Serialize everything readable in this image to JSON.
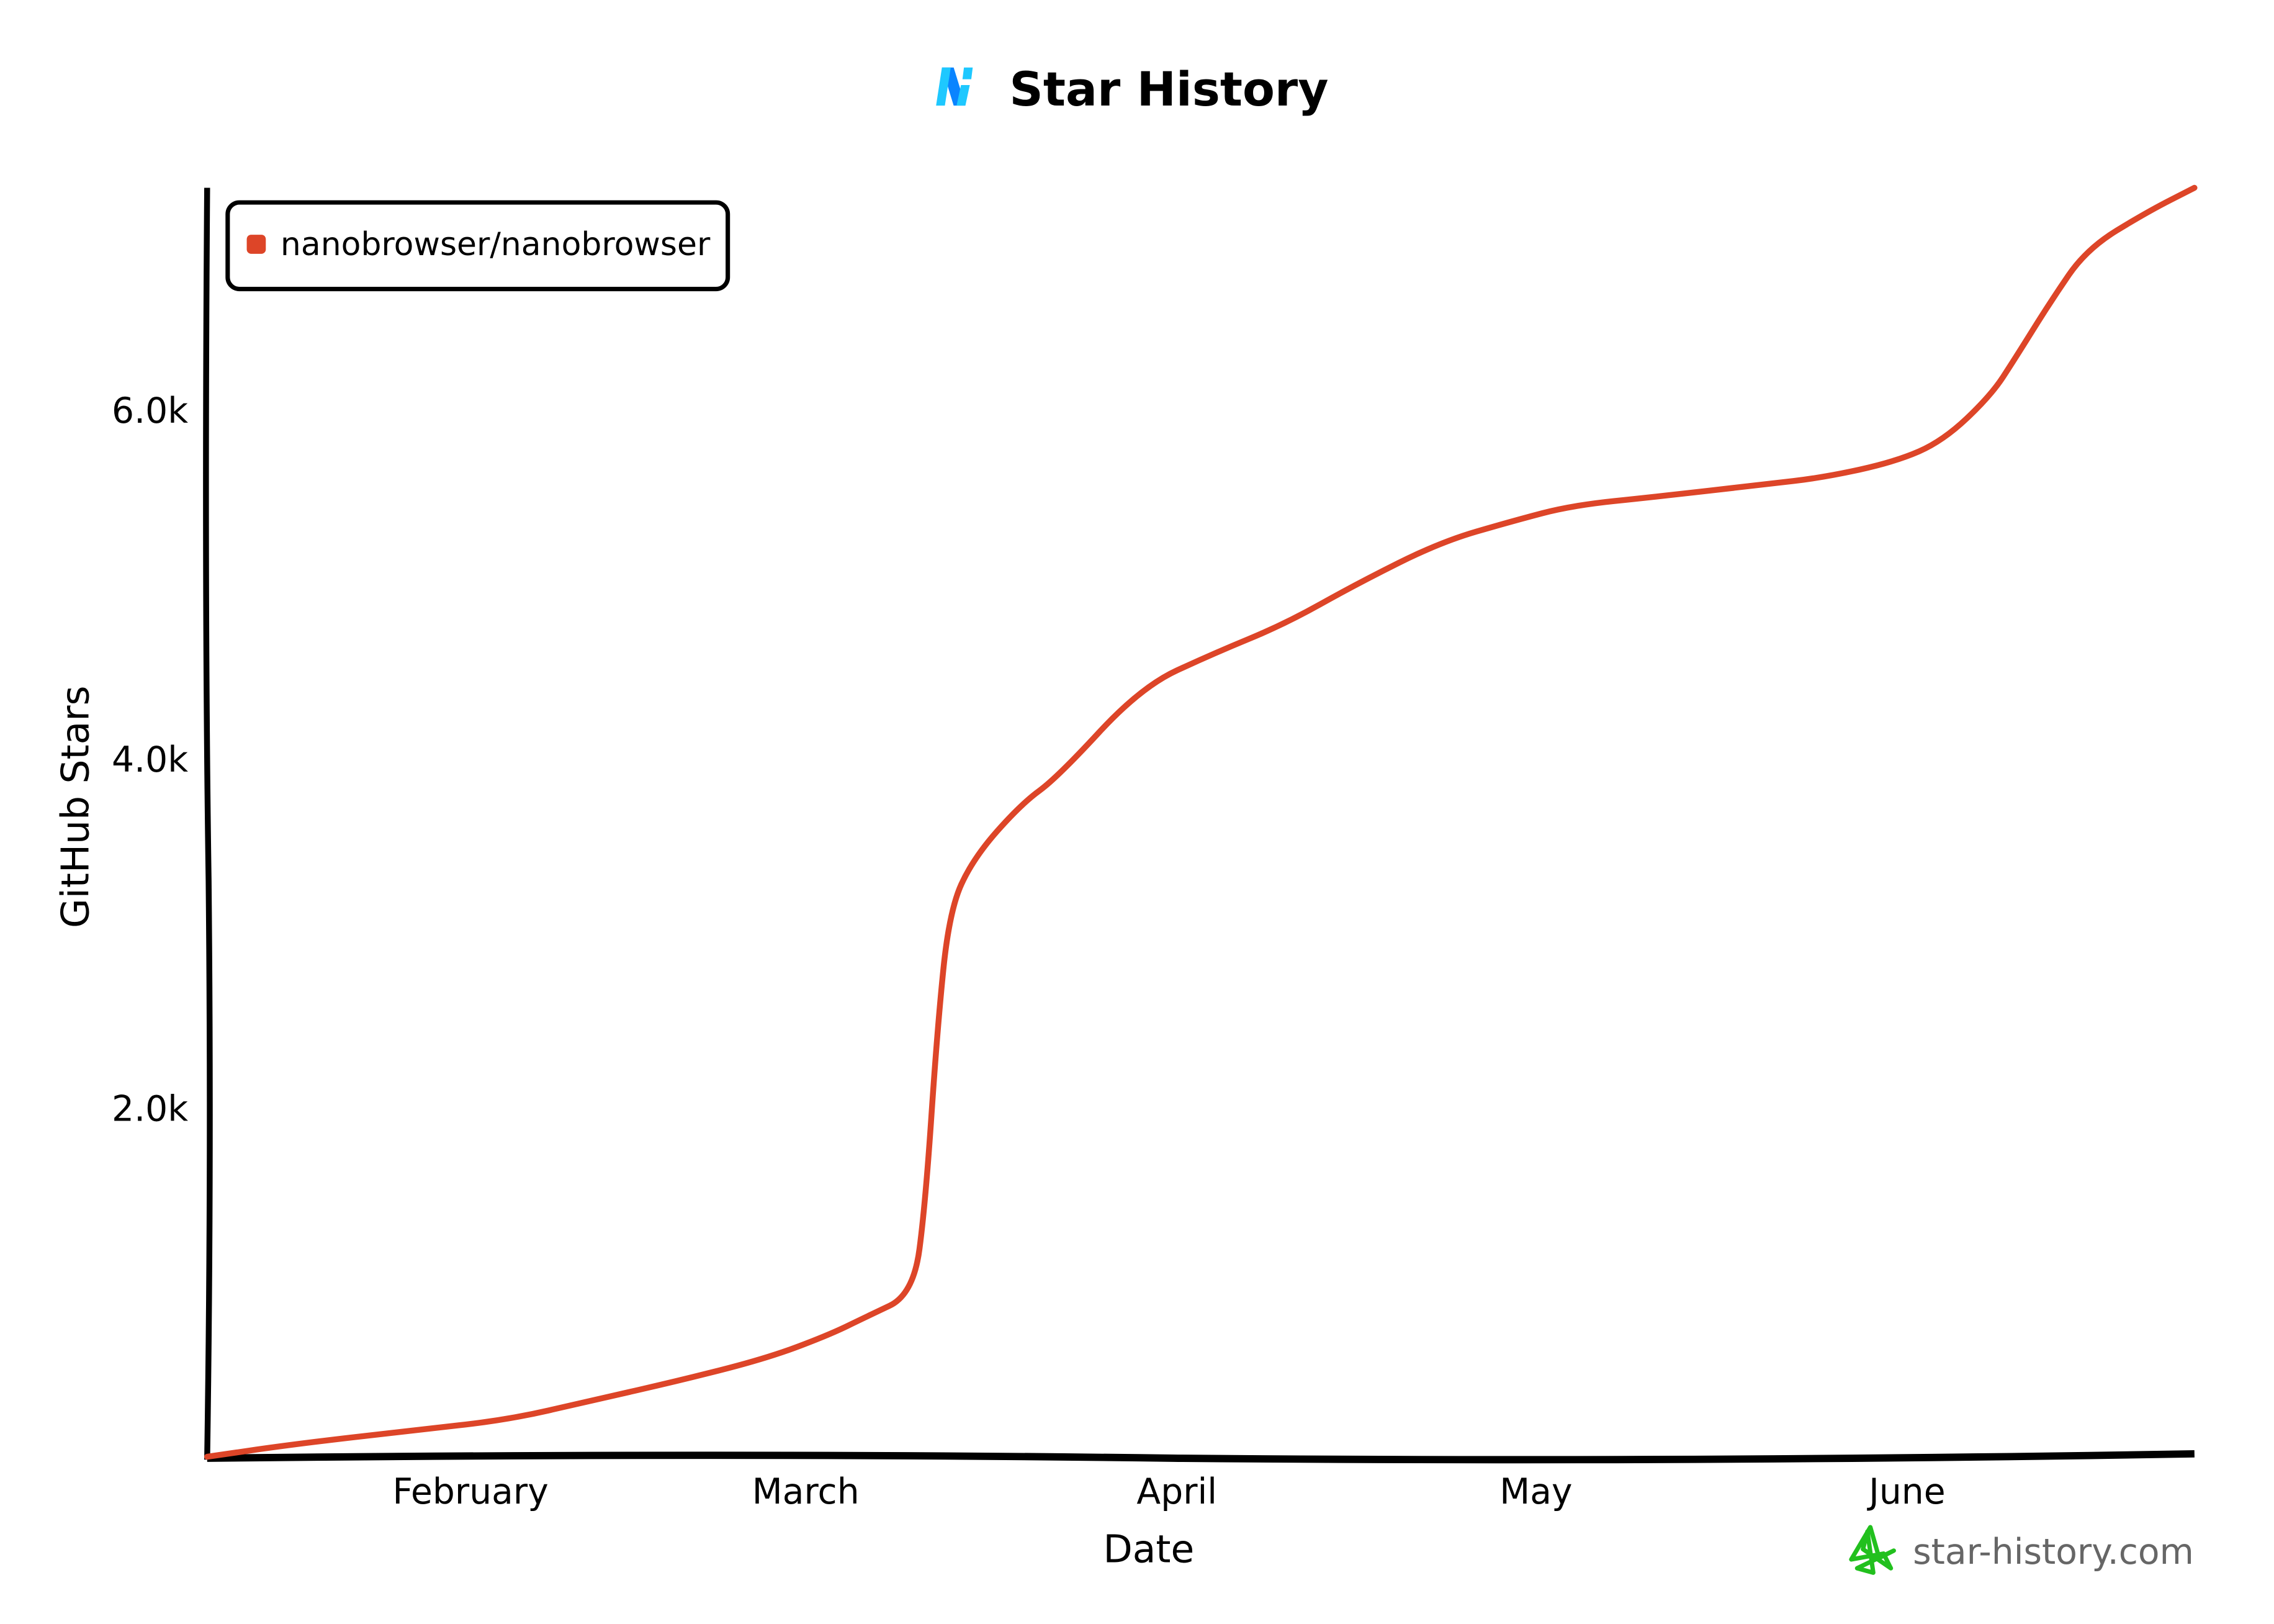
{
  "chart_data": {
    "type": "line",
    "title": "Star History",
    "xlabel": "Date",
    "ylabel": "GitHub Stars",
    "x_range": [
      "2025-01-10",
      "2025-06-25"
    ],
    "ylim": [
      0,
      7270
    ],
    "grid": false,
    "legend_position": "top-left",
    "x_ticks": [
      {
        "label": "February",
        "date": "2025-02-01"
      },
      {
        "label": "March",
        "date": "2025-03-01"
      },
      {
        "label": "April",
        "date": "2025-04-01"
      },
      {
        "label": "May",
        "date": "2025-05-01"
      },
      {
        "label": "June",
        "date": "2025-06-01"
      }
    ],
    "y_ticks": [
      {
        "label": "2.0k",
        "value": 2000
      },
      {
        "label": "4.0k",
        "value": 4000
      },
      {
        "label": "6.0k",
        "value": 6000
      }
    ],
    "series": [
      {
        "name": "nanobrowser/nanobrowser",
        "color": "#dd4528",
        "points": [
          [
            "2025-01-10",
            0
          ],
          [
            "2025-01-17",
            70
          ],
          [
            "2025-01-27",
            150
          ],
          [
            "2025-02-04",
            210
          ],
          [
            "2025-02-11",
            320
          ],
          [
            "2025-02-19",
            445
          ],
          [
            "2025-02-26",
            570
          ],
          [
            "2025-03-03",
            700
          ],
          [
            "2025-03-06",
            800
          ],
          [
            "2025-03-10",
            930
          ],
          [
            "2025-03-11",
            1450
          ],
          [
            "2025-03-12",
            2460
          ],
          [
            "2025-03-13",
            3130
          ],
          [
            "2025-03-15",
            3430
          ],
          [
            "2025-03-19",
            3740
          ],
          [
            "2025-03-22",
            3890
          ],
          [
            "2025-03-29",
            4410
          ],
          [
            "2025-04-04",
            4600
          ],
          [
            "2025-04-10",
            4770
          ],
          [
            "2025-04-16",
            5000
          ],
          [
            "2025-04-23",
            5240
          ],
          [
            "2025-04-29",
            5360
          ],
          [
            "2025-05-04",
            5450
          ],
          [
            "2025-05-11",
            5500
          ],
          [
            "2025-05-20",
            5570
          ],
          [
            "2025-05-25",
            5610
          ],
          [
            "2025-05-31",
            5700
          ],
          [
            "2025-06-04",
            5820
          ],
          [
            "2025-06-08",
            6080
          ],
          [
            "2025-06-10",
            6290
          ],
          [
            "2025-06-13",
            6620
          ],
          [
            "2025-06-16",
            6920
          ],
          [
            "2025-06-21",
            7130
          ],
          [
            "2025-06-25",
            7270
          ]
        ]
      }
    ],
    "watermark": "star-history.com",
    "logo_icon": "nanobrowser-logo-icon",
    "watermark_icon": "star-outline-icon",
    "watermark_color": "#22c01e",
    "logo_colors": [
      "#0a84ff",
      "#1ec8ff"
    ]
  }
}
